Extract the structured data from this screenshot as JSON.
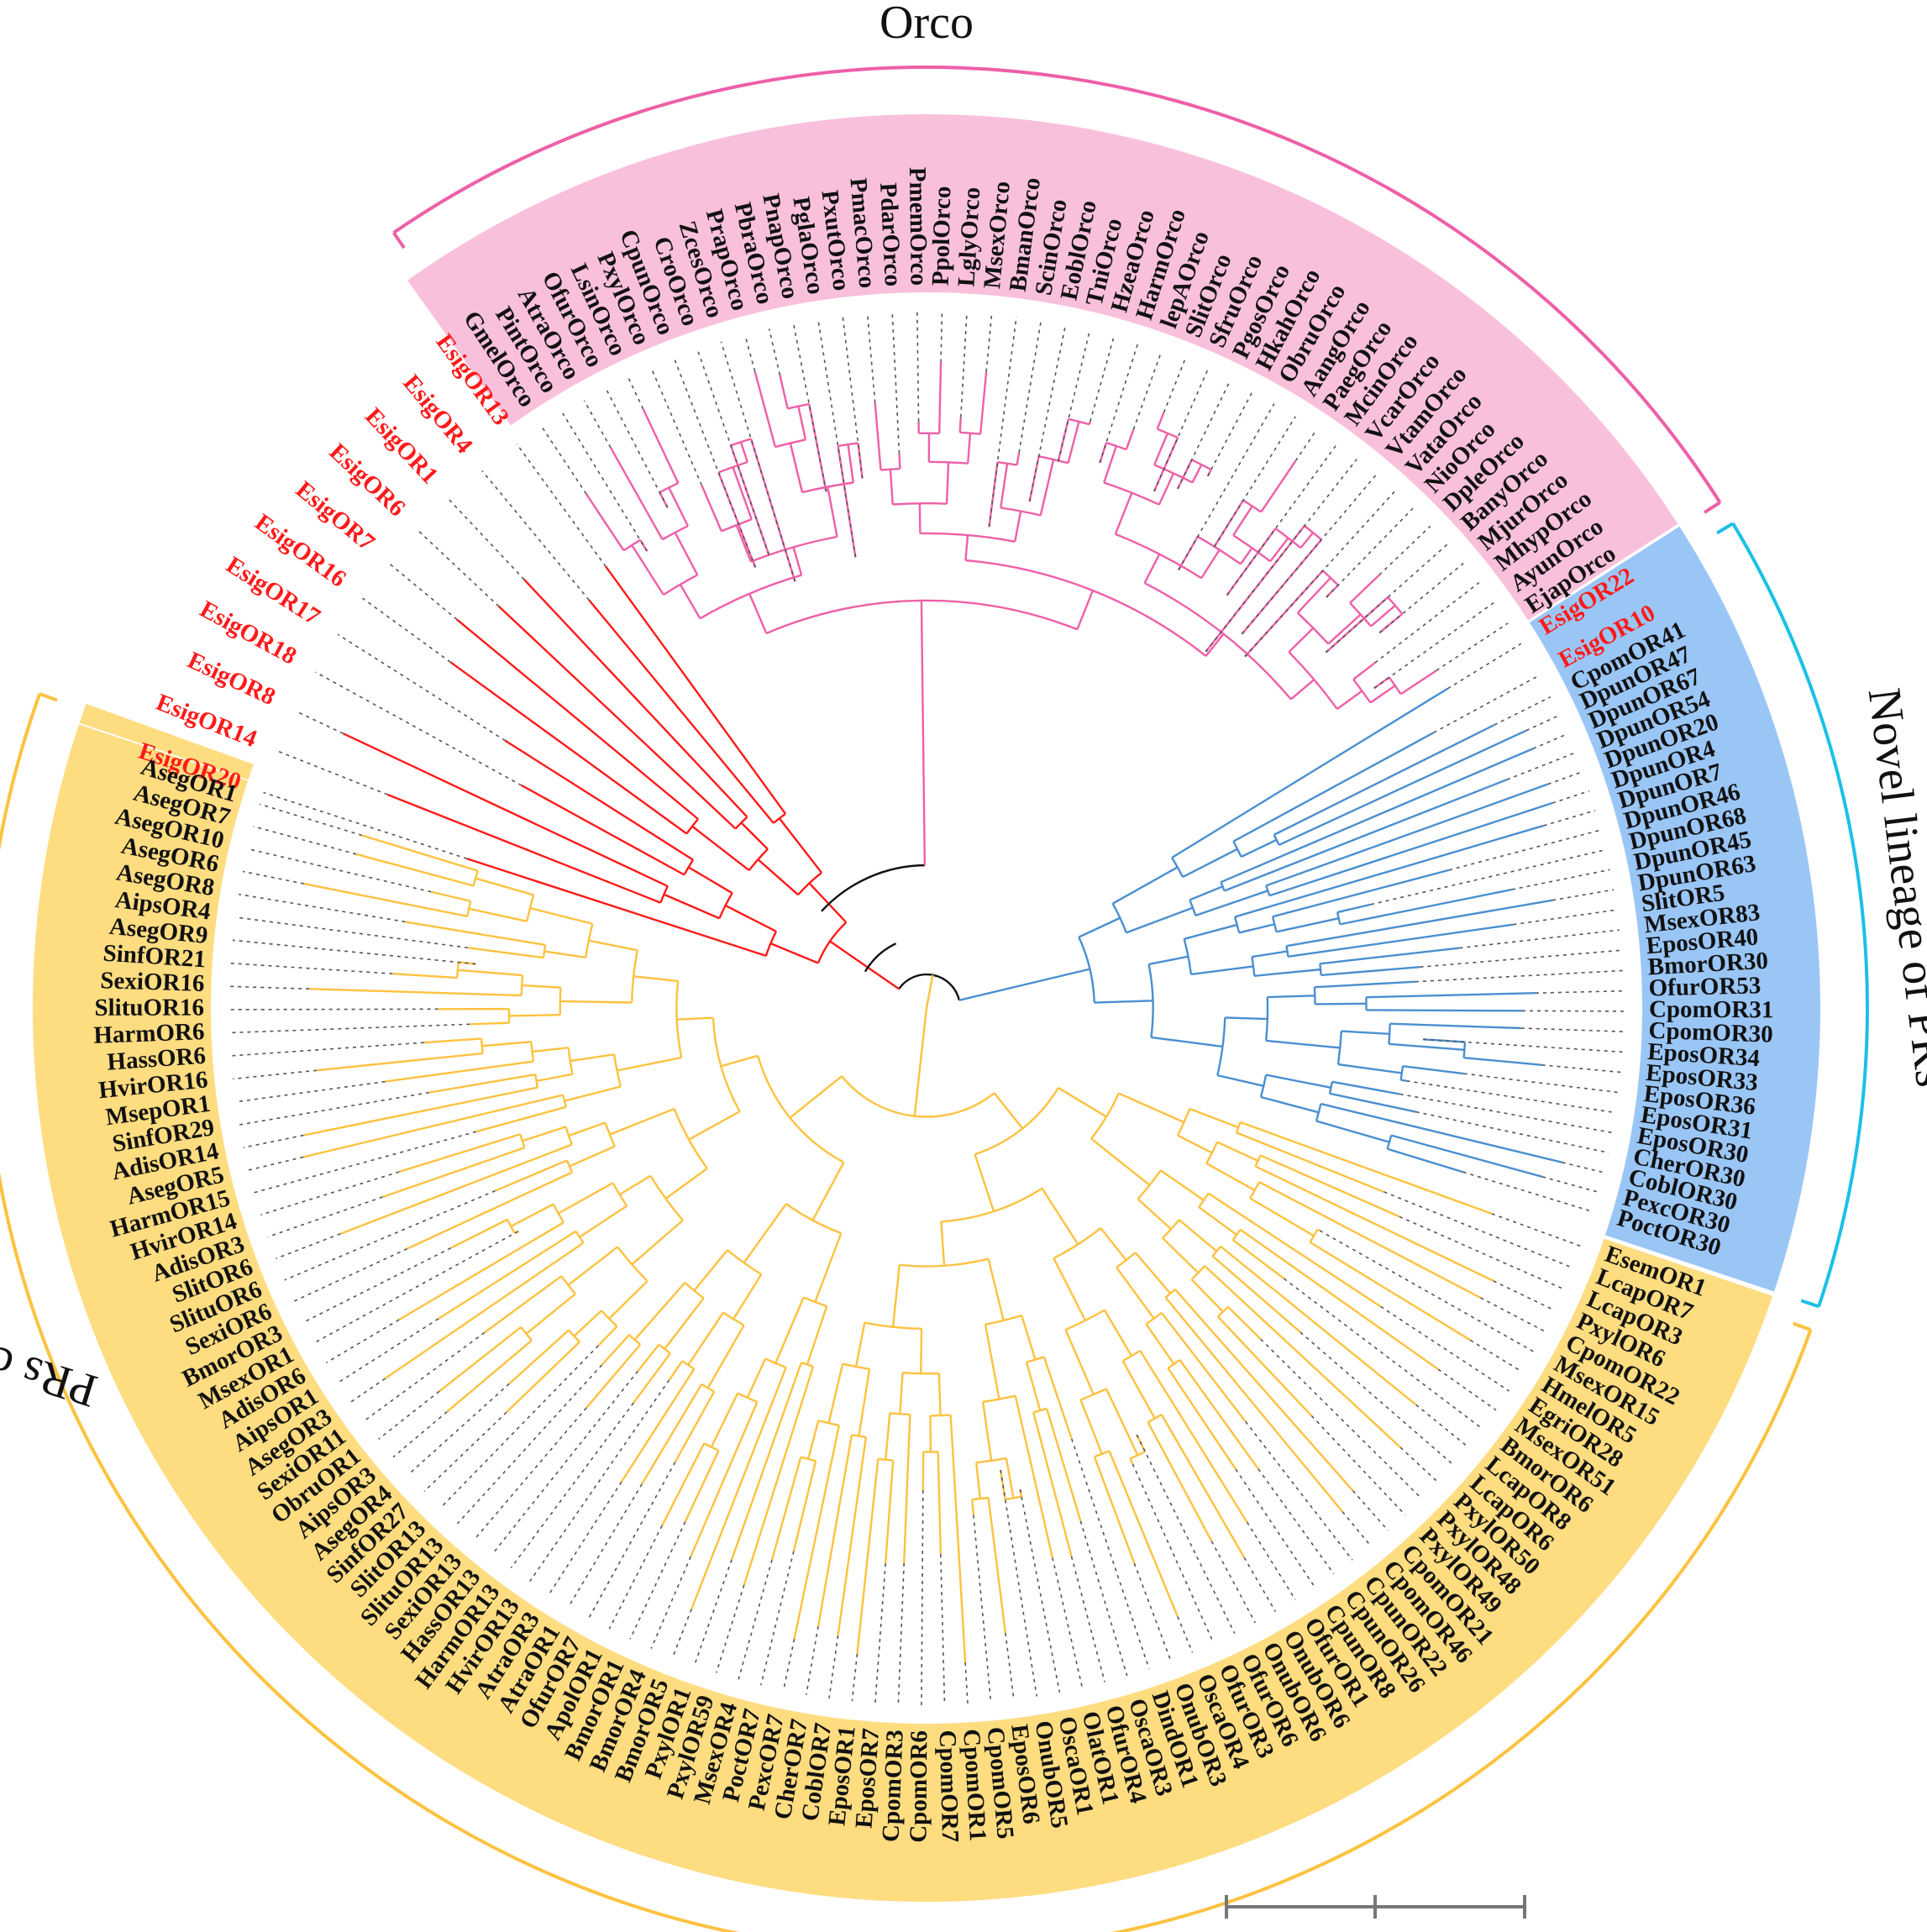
{
  "colors": {
    "orco": "#ee5fa7",
    "orco_fill": "#f9c0dc",
    "novel": "#1cc0e6",
    "novel_branch": "#4a8fd0",
    "novel_fill": "#9ac6f6",
    "prs": "#fdc23f",
    "prs_fill": "#fedc80",
    "esig": "#ff1a1a",
    "backbone": "#111111",
    "label": "#111111",
    "connector": "#555555",
    "scale": "#777777"
  },
  "clades": {
    "orco": {
      "title": "Orco"
    },
    "novel": {
      "title": "Novel lineage of PRs"
    },
    "prs": {
      "title": "PRs clade"
    }
  },
  "leaves": {
    "esig_top": [
      "EsigOR20",
      "EsigOR14",
      "EsigOR8",
      "EsigOR18",
      "EsigOR17",
      "EsigOR16",
      "EsigOR7",
      "EsigOR6",
      "EsigOR1",
      "EsigOR4",
      "EsigOR13"
    ],
    "orco": [
      "GmelOrco",
      "PintOrco",
      "AtraOrco",
      "OfurOrco",
      "LsinOrco",
      "PxylOrco",
      "CpunOrco",
      "CroOrco",
      "ZcesOrco",
      "PrapOrco",
      "PbraOrco",
      "PnapOrco",
      "PglaOrco",
      "PxutOrco",
      "PmacOrco",
      "PdarOrco",
      "PmemOrco",
      "PpolOrco",
      "LglyOrco",
      "MsexOrco",
      "BmanOrco",
      "ScinOrco",
      "EoblOrco",
      "TniOrco",
      "HzeaOrco",
      "HarmOrco",
      "lepAOrco",
      "SlitOrco",
      "SfruOrco",
      "PgosOrco",
      "HkahOrco",
      "ObruOrco",
      "AangOrco",
      "PaegOrco",
      "McinOrco",
      "VcarOrco",
      "VtamOrco",
      "VataOrco",
      "NioOrco",
      "DpleOrco",
      "BanyOrco",
      "MjurOrco",
      "MhypOrco",
      "AyunOrco",
      "EjapOrco"
    ],
    "esig_mid": [
      "EsigOR22",
      "EsigOR10"
    ],
    "novel": [
      "CpomOR41",
      "DpunOR47",
      "DpunOR67",
      "DpunOR54",
      "DpunOR20",
      "DpunOR4",
      "DpunOR7",
      "DpunOR46",
      "DpunOR68",
      "DpunOR45",
      "DpunOR63",
      "SlitOR5",
      "MsexOR83",
      "EposOR40",
      "BmorOR30",
      "OfurOR53",
      "CpomOR31",
      "CpomOR30",
      "EposOR34",
      "EposOR33",
      "EposOR36",
      "EposOR31",
      "EposOR30",
      "CherOR30",
      "CoblOR30",
      "PexcOR30",
      "PoctOR30"
    ],
    "prs": [
      "EsemOR1",
      "LcapOR7",
      "LcapOR3",
      "PxylOR6",
      "CpomOR22",
      "MsexOR15",
      "HmelOR5",
      "EgriOR28",
      "MsexOR51",
      "BmorOR6",
      "LcapOR8",
      "LcapOR6",
      "PxylOR50",
      "PxylOR48",
      "PxylOR49",
      "CpomOR21",
      "CpomOR46",
      "CpunOR22",
      "CpunOR26",
      "CpunOR8",
      "OfurOR1",
      "OnubOR6",
      "OnubOR6",
      "OfurOR6",
      "OfurOR3",
      "OscaOR4",
      "OnubOR3",
      "DindOR1",
      "OscaOR3",
      "OfurOR4",
      "OlatOR1",
      "OscaOR1",
      "OnubOR5",
      "EposOR6",
      "CpomOR5",
      "CpomOR1",
      "CpomOR7",
      "CpomOR6",
      "CpomOR3",
      "EposOR7",
      "EposOR1",
      "CoblOR7",
      "CherOR7",
      "PexcOR7",
      "PoctOR7",
      "MsexOR4",
      "PxylOR59",
      "PxylOR1",
      "BmorOR5",
      "BmorOR4",
      "BmorOR1",
      "ApolOR1",
      "OfurOR7",
      "AtraOR1",
      "AtraOR3",
      "HvirOR13",
      "HarmOR13",
      "HassOR13",
      "SexiOR13",
      "SlituOR13",
      "SlitOR13",
      "SinfOR27",
      "AsegOR4",
      "AipsOR3",
      "ObruOR1",
      "SexiOR11",
      "AsegOR3",
      "AipsOR1",
      "AdisOR6",
      "MsexOR1",
      "BmorOR3",
      "SexiOR6",
      "SlituOR6",
      "SlitOR6",
      "AdisOR3",
      "HvirOR14",
      "HarmOR15",
      "AsegOR5",
      "AdisOR14",
      "SinfOR29",
      "MsepOR1",
      "HvirOR16",
      "HassOR6",
      "HarmOR6",
      "SlituOR16",
      "SexiOR16",
      "SinfOR21",
      "AsegOR9",
      "AipsOR4",
      "AsegOR8",
      "AsegOR6",
      "AsegOR10",
      "AsegOR7",
      "AsegOR1"
    ]
  }
}
